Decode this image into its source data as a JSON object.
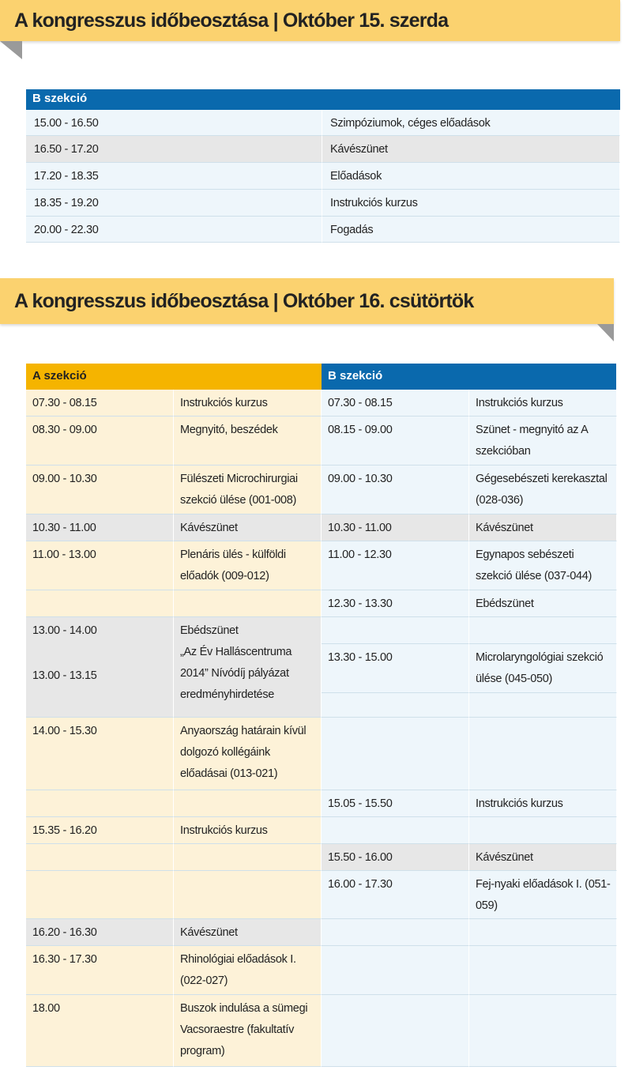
{
  "day1": {
    "banner": "A kongresszus időbeosztása | Október 15. szerda",
    "section": "B szekció",
    "rows": [
      {
        "time": "15.00 - 16.50",
        "title": "Szimpóziumok, céges előadások"
      },
      {
        "time": "16.50 - 17.20",
        "title": "Kávészünet"
      },
      {
        "time": "17.20 - 18.35",
        "title": "Előadások"
      },
      {
        "time": "18.35 - 19.20",
        "title": "Instrukciós kurzus"
      },
      {
        "time": "20.00 - 22.30",
        "title": "Fogadás"
      }
    ]
  },
  "day2": {
    "banner": "A kongresszus időbeosztása | Október 16. csütörtök",
    "section_a": {
      "title": "A szekció",
      "rows": [
        {
          "time": "07.30 - 08.15",
          "title": "Instrukciós kurzus"
        },
        {
          "time": "08.30 - 09.00",
          "title": "Megnyitó, beszédek"
        },
        {
          "time": "09.00 - 10.30",
          "title": "Fülészeti Microchirurgiai szekció ülése (001-008)"
        },
        {
          "time": "10.30 - 11.00",
          "title": "Kávészünet"
        },
        {
          "time": "11.00 - 13.00",
          "title": "Plenáris ülés - külföldi előadók (009-012)"
        },
        {
          "time": "13.00 - 14.00",
          "title": "Ebédszünet"
        },
        {
          "time": "13.00 - 13.15",
          "title": "„Az Év Halláscentruma 2014” Nívódíj pályázat eredményhirdetése"
        },
        {
          "time": "14.00 - 15.30",
          "title": "Anyaország határain kívül dolgozó kollégáink előadásai (013-021)"
        },
        {
          "time": "15.35 - 16.20",
          "title": "Instrukciós kurzus"
        },
        {
          "time": "16.20 - 16.30",
          "title": "Kávészünet"
        },
        {
          "time": "16.30 - 17.30",
          "title": "Rhinológiai előadások I. (022-027)"
        },
        {
          "time": "18.00",
          "title": "Buszok indulása a sümegi Vacsoraestre (fakultatív program)"
        }
      ]
    },
    "section_b": {
      "title": "B szekció",
      "rows": [
        {
          "time": "07.30 - 08.15",
          "title": "Instrukciós kurzus"
        },
        {
          "time": "08.15 - 09.00",
          "title": "Szünet - megnyitó az A szekcióban"
        },
        {
          "time": "09.00 - 10.30",
          "title": "Gégesebészeti kerekasztal (028-036)"
        },
        {
          "time": "10.30 - 11.00",
          "title": "Kávészünet"
        },
        {
          "time": "11.00 - 12.30",
          "title": "Egynapos sebészeti szekció ülése (037-044)"
        },
        {
          "time": "12.30 - 13.30",
          "title": "Ebédszünet"
        },
        {
          "time": "13.30 - 15.00",
          "title": "Microlaryngológiai szekció ülése (045-050)"
        },
        {
          "time": "15.05 - 15.50",
          "title": "Instrukciós kurzus"
        },
        {
          "time": "15.50 - 16.00",
          "title": "Kávészünet"
        },
        {
          "time": "16.00 - 17.30",
          "title": "Fej-nyaki előadások I. (051-059)"
        }
      ]
    }
  }
}
